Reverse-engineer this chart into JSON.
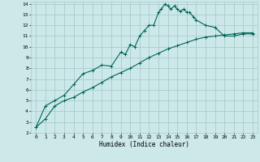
{
  "xlabel": "Humidex (Indice chaleur)",
  "bg_color": "#cce8e8",
  "grid_color": "#aacccc",
  "line_color": "#006655",
  "xlim": [
    -0.5,
    23.5
  ],
  "ylim": [
    2,
    14.2
  ],
  "xticks": [
    0,
    1,
    2,
    3,
    4,
    5,
    6,
    7,
    8,
    9,
    10,
    11,
    12,
    13,
    14,
    15,
    16,
    17,
    18,
    19,
    20,
    21,
    22,
    23
  ],
  "yticks": [
    2,
    3,
    4,
    5,
    6,
    7,
    8,
    9,
    10,
    11,
    12,
    13,
    14
  ],
  "jagged_x": [
    0,
    1,
    2,
    3,
    4,
    5,
    6,
    7,
    8,
    9,
    9.5,
    10,
    10.5,
    11,
    11.5,
    12,
    12.5,
    13,
    13.3,
    13.7,
    14,
    14.3,
    14.7,
    15,
    15.3,
    15.7,
    16,
    16.3,
    16.7,
    17,
    18,
    19,
    20,
    21,
    22,
    23
  ],
  "jagged_y": [
    2.5,
    4.5,
    5.0,
    5.5,
    6.5,
    7.5,
    7.8,
    8.3,
    8.2,
    9.5,
    9.3,
    10.2,
    10.0,
    11.0,
    11.5,
    12.0,
    12.0,
    13.2,
    13.5,
    14.0,
    13.8,
    13.5,
    13.8,
    13.5,
    13.3,
    13.5,
    13.2,
    13.2,
    12.8,
    12.5,
    12.0,
    11.8,
    11.0,
    11.0,
    11.2,
    11.2
  ],
  "smooth_x": [
    0,
    1,
    2,
    3,
    4,
    5,
    6,
    7,
    8,
    9,
    10,
    11,
    12,
    13,
    14,
    15,
    16,
    17,
    18,
    19,
    20,
    21,
    22,
    23
  ],
  "smooth_y": [
    2.5,
    3.3,
    4.5,
    5.0,
    5.3,
    5.8,
    6.2,
    6.7,
    7.2,
    7.6,
    8.0,
    8.5,
    9.0,
    9.4,
    9.8,
    10.1,
    10.4,
    10.7,
    10.9,
    11.0,
    11.1,
    11.2,
    11.3,
    11.3
  ]
}
